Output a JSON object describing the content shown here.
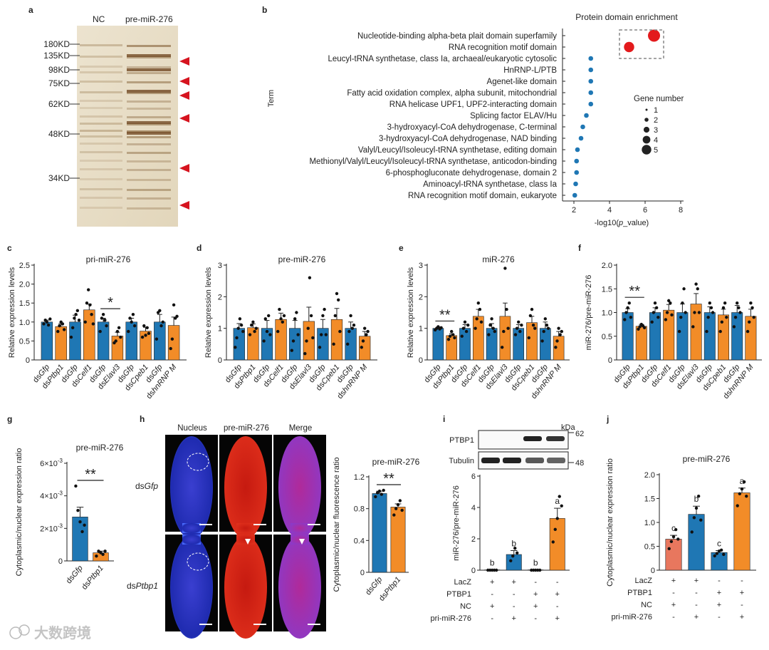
{
  "panel_letters": [
    "a",
    "b",
    "c",
    "d",
    "e",
    "f",
    "g",
    "h",
    "i",
    "j"
  ],
  "panel_a": {
    "lane_labels": [
      "NC",
      "pre-miR-276"
    ],
    "markers": [
      "180KD",
      "135KD",
      "98KD",
      "75KD",
      "62KD",
      "48KD",
      "34KD"
    ]
  },
  "panel_b": {
    "title": "Protein domain enrichment",
    "ylabel": "Term",
    "xlabel": "-log10(p_value)",
    "xlabel_parts": [
      "-log10(",
      "p",
      "_value)"
    ],
    "legend_title": "Gene number",
    "legend_values": [
      "1",
      "2",
      "3",
      "4",
      "5"
    ]
  },
  "chart_data": [
    {
      "panel": "b",
      "type": "scatter",
      "title": "Protein domain enrichment",
      "xlabel": "-log10(p_value)",
      "ylabel": "Term",
      "xlim": [
        2,
        8
      ],
      "xticks": [
        "2",
        "4",
        "6",
        "8"
      ],
      "categories": [
        "Nucleotide-binding alpha-beta plait domain superfamily",
        "RNA recognition motif domain",
        "Leucyl-tRNA synthetase, class Ia, archaeal/eukaryotic cytosolic",
        "HnRNP-L/PTB",
        "Agenet-like domain",
        "Fatty acid oxidation complex, alpha subunit, mitochondrial",
        "RNA helicase UPF1, UPF2-interacting domain",
        "Splicing factor ELAV/Hu",
        "3-hydroxyacyl-CoA dehydrogenase, C-terminal",
        "3-hydroxyacyl-CoA dehydrogenase, NAD binding",
        "Valyl/Leucyl/Isoleucyl-tRNA synthetase, editing domain",
        "Methionyl/Valyl/Leucyl/Isoleucyl-tRNA synthetase, anticodon-binding",
        "6-phosphogluconate dehydrogenase, domain 2",
        "Aminoacyl-tRNA synthetase, class Ia",
        "RNA recognition motif domain, eukaryote"
      ],
      "x": [
        6.5,
        5.1,
        2.95,
        2.95,
        2.95,
        2.95,
        2.95,
        2.7,
        2.5,
        2.4,
        2.2,
        2.15,
        2.15,
        2.1,
        2.05
      ],
      "gene_number": [
        5,
        4,
        1,
        1,
        1,
        1,
        1,
        1,
        1,
        1,
        1,
        1,
        1,
        1,
        1
      ],
      "highlight": [
        true,
        true,
        false,
        false,
        false,
        false,
        false,
        false,
        false,
        false,
        false,
        false,
        false,
        false,
        false
      ],
      "legend": "right"
    },
    {
      "panel": "c",
      "type": "bar",
      "title": "pri-miR-276",
      "ylabel": "Relative expression levels",
      "ylim": [
        0,
        2.5
      ],
      "yticks": [
        "0",
        "0.5",
        "1.0",
        "1.5",
        "2.0",
        "2.5"
      ],
      "categories": [
        "dsGfp",
        "dsPtbp1",
        "dsGfp",
        "dsCelf1",
        "dsGfp",
        "dsElavl3",
        "dsGfp",
        "dsCpeb1",
        "dsGfp",
        "dshnRNP M"
      ],
      "cat_parts": [
        [
          "ds",
          "Gfp"
        ],
        [
          "ds",
          "Ptbp1"
        ],
        [
          "ds",
          "Gfp"
        ],
        [
          "ds",
          "Celf1"
        ],
        [
          "ds",
          "Gfp"
        ],
        [
          "ds",
          "Elavl3"
        ],
        [
          "ds",
          "Gfp"
        ],
        [
          "ds",
          "Cpeb1"
        ],
        [
          "ds",
          "Gfp"
        ],
        [
          "ds",
          "hnRNP M"
        ]
      ],
      "values": [
        1.0,
        0.88,
        1.0,
        1.32,
        1.0,
        0.63,
        1.0,
        0.76,
        1.0,
        0.91
      ],
      "errors": [
        0.05,
        0.08,
        0.18,
        0.15,
        0.1,
        0.1,
        0.1,
        0.1,
        0.2,
        0.22
      ],
      "points": [
        [
          0.95,
          1.05,
          1.0,
          0.92,
          1.08
        ],
        [
          0.75,
          0.9,
          1.0,
          0.95,
          0.8
        ],
        [
          0.6,
          0.85,
          1.1,
          1.2,
          1.3,
          1.05
        ],
        [
          1.0,
          1.5,
          1.85,
          1.45,
          1.2,
          0.95
        ],
        [
          0.75,
          1.1,
          1.2,
          1.05,
          0.9
        ],
        [
          0.45,
          0.5,
          0.75,
          0.85,
          0.6
        ],
        [
          0.75,
          1.1,
          1.0,
          1.2,
          0.9
        ],
        [
          0.6,
          0.9,
          0.65,
          0.85,
          0.7
        ],
        [
          0.55,
          1.25,
          1.3,
          0.9,
          1.0
        ],
        [
          0.3,
          0.55,
          1.45,
          1.1,
          1.15
        ]
      ],
      "significance": [
        {
          "pair": 2,
          "label": "*"
        }
      ]
    },
    {
      "panel": "d",
      "type": "bar",
      "title": "pre-miR-276",
      "ylabel": "Relative expression levels",
      "ylim": [
        0,
        3
      ],
      "yticks": [
        "0",
        "1",
        "2",
        "3"
      ],
      "categories": [
        "dsGfp",
        "dsPtbp1",
        "dsGfp",
        "dsCelf1",
        "dsGfp",
        "dsElavl3",
        "dsGfp",
        "dsCpeb1",
        "dsGfp",
        "dshnRNP M"
      ],
      "cat_parts": [
        [
          "ds",
          "Gfp"
        ],
        [
          "ds",
          "Ptbp1"
        ],
        [
          "ds",
          "Gfp"
        ],
        [
          "ds",
          "Celf1"
        ],
        [
          "ds",
          "Gfp"
        ],
        [
          "ds",
          "Elavl3"
        ],
        [
          "ds",
          "Gfp"
        ],
        [
          "ds",
          "Cpeb1"
        ],
        [
          "ds",
          "Gfp"
        ],
        [
          "ds",
          "hnRNP M"
        ]
      ],
      "values": [
        1.0,
        1.02,
        1.0,
        1.28,
        1.0,
        1.22,
        1.0,
        1.28,
        1.0,
        0.75
      ],
      "errors": [
        0.15,
        0.12,
        0.25,
        0.2,
        0.25,
        0.45,
        0.28,
        0.35,
        0.2,
        0.15
      ],
      "points": [
        [
          0.4,
          0.7,
          1.0,
          1.3,
          1.1,
          0.9
        ],
        [
          0.8,
          1.1,
          1.2,
          0.9,
          1.0
        ],
        [
          0.6,
          1.3,
          0.9,
          1.4,
          0.8
        ],
        [
          0.9,
          1.6,
          1.3,
          1.2,
          1.4
        ],
        [
          0.3,
          0.6,
          1.3,
          1.5,
          0.8
        ],
        [
          0.2,
          0.6,
          1.0,
          2.6,
          1.4,
          0.7
        ],
        [
          0.4,
          0.8,
          1.4,
          1.6,
          0.8
        ],
        [
          0.5,
          1.4,
          2.1,
          1.9,
          0.9
        ],
        [
          0.5,
          0.9,
          1.4,
          1.0,
          1.1
        ],
        [
          0.4,
          0.6,
          1.0,
          0.8,
          0.9
        ]
      ],
      "significance": []
    },
    {
      "panel": "e",
      "type": "bar",
      "title": "miR-276",
      "ylabel": "Relative expression levels",
      "ylim": [
        0,
        3
      ],
      "yticks": [
        "0",
        "1",
        "2",
        "3"
      ],
      "categories": [
        "dsGfp",
        "dsPtbp1",
        "dsGfp",
        "dsCelf1",
        "dsGfp",
        "dsElavl3",
        "dsGfp",
        "dsCpeb1",
        "dsGfp",
        "dshnRNP M"
      ],
      "cat_parts": [
        [
          "ds",
          "Gfp"
        ],
        [
          "ds",
          "Ptbp1"
        ],
        [
          "ds",
          "Gfp"
        ],
        [
          "ds",
          "Celf1"
        ],
        [
          "ds",
          "Gfp"
        ],
        [
          "ds",
          "Elavl3"
        ],
        [
          "ds",
          "Gfp"
        ],
        [
          "ds",
          "Cpeb1"
        ],
        [
          "ds",
          "Gfp"
        ],
        [
          "ds",
          "hnRNP M"
        ]
      ],
      "values": [
        1.0,
        0.77,
        1.0,
        1.38,
        1.0,
        1.38,
        1.0,
        1.18,
        1.0,
        0.75
      ],
      "errors": [
        0.04,
        0.06,
        0.12,
        0.22,
        0.15,
        0.42,
        0.12,
        0.2,
        0.2,
        0.15
      ],
      "points": [
        [
          0.95,
          1.0,
          1.05,
          0.98,
          1.02
        ],
        [
          0.65,
          0.75,
          0.9,
          0.8,
          0.7
        ],
        [
          0.75,
          1.0,
          1.2,
          0.9,
          1.1
        ],
        [
          1.0,
          1.3,
          1.8,
          1.6,
          1.2
        ],
        [
          0.8,
          1.1,
          1.3,
          1.0,
          0.9
        ],
        [
          0.4,
          0.9,
          2.9,
          1.6,
          1.0
        ],
        [
          0.8,
          1.0,
          1.2,
          0.9,
          1.1
        ],
        [
          0.7,
          1.4,
          1.6,
          1.1,
          1.0
        ],
        [
          0.6,
          0.9,
          1.3,
          1.1,
          1.0
        ],
        [
          0.4,
          0.6,
          1.0,
          0.8,
          0.9
        ]
      ],
      "significance": [
        {
          "pair": 0,
          "label": "**"
        }
      ]
    },
    {
      "panel": "f",
      "type": "bar",
      "title": "",
      "ylabel": "miR-276/pre-miR-276",
      "ylim": [
        0,
        2.0
      ],
      "yticks": [
        "0",
        "0.5",
        "1.0",
        "1.5",
        "2.0"
      ],
      "categories": [
        "dsGfp",
        "dsPtbp1",
        "dsGfp",
        "dsCelf1",
        "dsGfp",
        "dsElavl3",
        "dsGfp",
        "dsCpeb1",
        "dsGfp",
        "dshnRNP M"
      ],
      "cat_parts": [
        [
          "ds",
          "Gfp"
        ],
        [
          "ds",
          "Ptbp1"
        ],
        [
          "ds",
          "Gfp"
        ],
        [
          "ds",
          "Celf1"
        ],
        [
          "ds",
          "Gfp"
        ],
        [
          "ds",
          "Elavl3"
        ],
        [
          "ds",
          "Gfp"
        ],
        [
          "ds",
          "Cpeb1"
        ],
        [
          "ds",
          "Gfp"
        ],
        [
          "ds",
          "hnRNP M"
        ]
      ],
      "values": [
        1.0,
        0.71,
        1.0,
        1.05,
        1.0,
        1.18,
        1.0,
        0.95,
        1.0,
        0.92
      ],
      "errors": [
        0.08,
        0.04,
        0.1,
        0.12,
        0.18,
        0.22,
        0.12,
        0.12,
        0.15,
        0.15
      ],
      "points": [
        [
          0.85,
          1.0,
          1.1,
          1.2,
          0.9
        ],
        [
          0.65,
          0.7,
          0.75,
          0.72,
          0.68
        ],
        [
          0.8,
          1.0,
          1.2,
          1.1,
          0.9
        ],
        [
          0.85,
          1.0,
          1.25,
          1.2,
          0.95
        ],
        [
          0.6,
          0.9,
          1.2,
          1.5,
          1.0
        ],
        [
          0.7,
          1.0,
          1.6,
          1.5,
          1.0
        ],
        [
          0.6,
          0.9,
          1.2,
          1.1,
          1.0
        ],
        [
          0.6,
          0.8,
          1.1,
          1.2,
          0.9
        ],
        [
          0.7,
          0.9,
          1.2,
          1.1,
          1.0
        ],
        [
          0.6,
          0.8,
          1.2,
          1.1,
          0.9
        ]
      ],
      "significance": [
        {
          "pair": 0,
          "label": "**"
        }
      ]
    },
    {
      "panel": "g",
      "type": "bar",
      "title": "pre-miR-276",
      "ylabel": "Cytoplasmic/nuclear expression ratio",
      "ylim": [
        0,
        0.006
      ],
      "yticks": [
        "0",
        "2×10",
        "4×10",
        "6×10"
      ],
      "ytick_exp": "-3",
      "categories": [
        "dsGfp",
        "dsPtbp1"
      ],
      "cat_parts": [
        [
          "ds",
          "Gfp"
        ],
        [
          "ds",
          "Ptbp1"
        ]
      ],
      "values": [
        0.0027,
        0.0005
      ],
      "errors": [
        0.0006,
        0.0001
      ],
      "points": [
        [
          0.0046,
          0.0031,
          0.0024,
          0.0018,
          0.0022
        ],
        [
          0.0003,
          0.0006,
          0.0005,
          0.0004,
          0.0006
        ]
      ],
      "significance": [
        {
          "pair": 0,
          "label": "**"
        }
      ]
    },
    {
      "panel": "h",
      "type": "bar",
      "title": "pre-miR-276",
      "ylabel": "Cytoplasmic/nuclear fluorescence ratio",
      "ylim": [
        0,
        1.2
      ],
      "yticks": [
        "0",
        "0.4",
        "0.8",
        "1.2"
      ],
      "categories": [
        "dsGfp",
        "dsPtbp1"
      ],
      "cat_parts": [
        [
          "ds",
          "Gfp"
        ],
        [
          "ds",
          "Ptbp1"
        ]
      ],
      "values": [
        0.99,
        0.82
      ],
      "errors": [
        0.03,
        0.04
      ],
      "points": [
        [
          0.95,
          1.0,
          1.02,
          0.98,
          1.03
        ],
        [
          0.72,
          0.8,
          0.85,
          0.9,
          0.78
        ]
      ],
      "significance": [
        {
          "pair": 0,
          "label": "**"
        }
      ]
    },
    {
      "panel": "i",
      "type": "bar",
      "title": "",
      "ylabel": "miR-276/pre-miR-276",
      "ylim": [
        0,
        6
      ],
      "yticks": [
        "0",
        "2",
        "4",
        "6"
      ],
      "categories": [
        "1",
        "2",
        "3",
        "4"
      ],
      "values": [
        0.02,
        1.0,
        0.02,
        3.3
      ],
      "errors": [
        0.01,
        0.25,
        0.01,
        0.65
      ],
      "points": [
        [
          0,
          0,
          0,
          0,
          0
        ],
        [
          0.6,
          0.9,
          1.4,
          1.1
        ],
        [
          0,
          0,
          0,
          0,
          0
        ],
        [
          1.8,
          2.6,
          3.3,
          4.7,
          4.1
        ]
      ],
      "letters": [
        "b",
        "b",
        "b",
        "a"
      ],
      "conditions": {
        "LacZ": [
          "+",
          "+",
          "-",
          "-"
        ],
        "PTBP1": [
          "-",
          "-",
          "+",
          "+"
        ],
        "NC": [
          "+",
          "-",
          "+",
          "-"
        ],
        "pri-miR-276": [
          "-",
          "+",
          "-",
          "+"
        ]
      }
    },
    {
      "panel": "j",
      "type": "bar",
      "title": "pre-miR-276",
      "ylabel": "Cytoplasmic/nuclear expression ratio",
      "ylim": [
        0,
        2.0
      ],
      "yticks": [
        "0",
        "0.5",
        "1.0",
        "1.5",
        "2.0"
      ],
      "categories": [
        "1",
        "2",
        "3",
        "4"
      ],
      "values": [
        0.65,
        1.17,
        0.37,
        1.62
      ],
      "errors": [
        0.08,
        0.17,
        0.04,
        0.1
      ],
      "points": [
        [
          0.45,
          0.6,
          0.7,
          0.85,
          0.65
        ],
        [
          0.8,
          1.1,
          1.3,
          1.55,
          1.05
        ],
        [
          0.3,
          0.35,
          0.4,
          0.42,
          0.33
        ],
        [
          1.35,
          1.6,
          1.7,
          1.85,
          1.55
        ]
      ],
      "letters": [
        "c",
        "b",
        "c",
        "a"
      ],
      "conditions": {
        "LacZ": [
          "+",
          "+",
          "-",
          "-"
        ],
        "PTBP1": [
          "-",
          "-",
          "+",
          "+"
        ],
        "NC": [
          "+",
          "-",
          "+",
          "-"
        ],
        "pri-miR-276": [
          "-",
          "+",
          "-",
          "+"
        ]
      }
    }
  ],
  "panel_h": {
    "col_labels": [
      "Nucleus",
      "pre-miR-276",
      "Merge"
    ],
    "row_labels": [
      [
        "ds",
        "Gfp"
      ],
      [
        "ds",
        "Ptbp1"
      ]
    ]
  },
  "panel_i": {
    "unit": "kDa",
    "blot_labels": [
      "PTBP1",
      "Tubulin"
    ],
    "blot_markers": [
      "62",
      "48"
    ],
    "condition_rows": [
      "LacZ",
      "PTBP1",
      "NC",
      "pri-miR-276"
    ]
  },
  "watermark": "大数跨境",
  "colors": {
    "blue": "#1f77b4",
    "orange": "#f28c28",
    "salmon": "#e8775e",
    "red": "#e31a1c",
    "scatter_blue": "#1f77b4"
  }
}
